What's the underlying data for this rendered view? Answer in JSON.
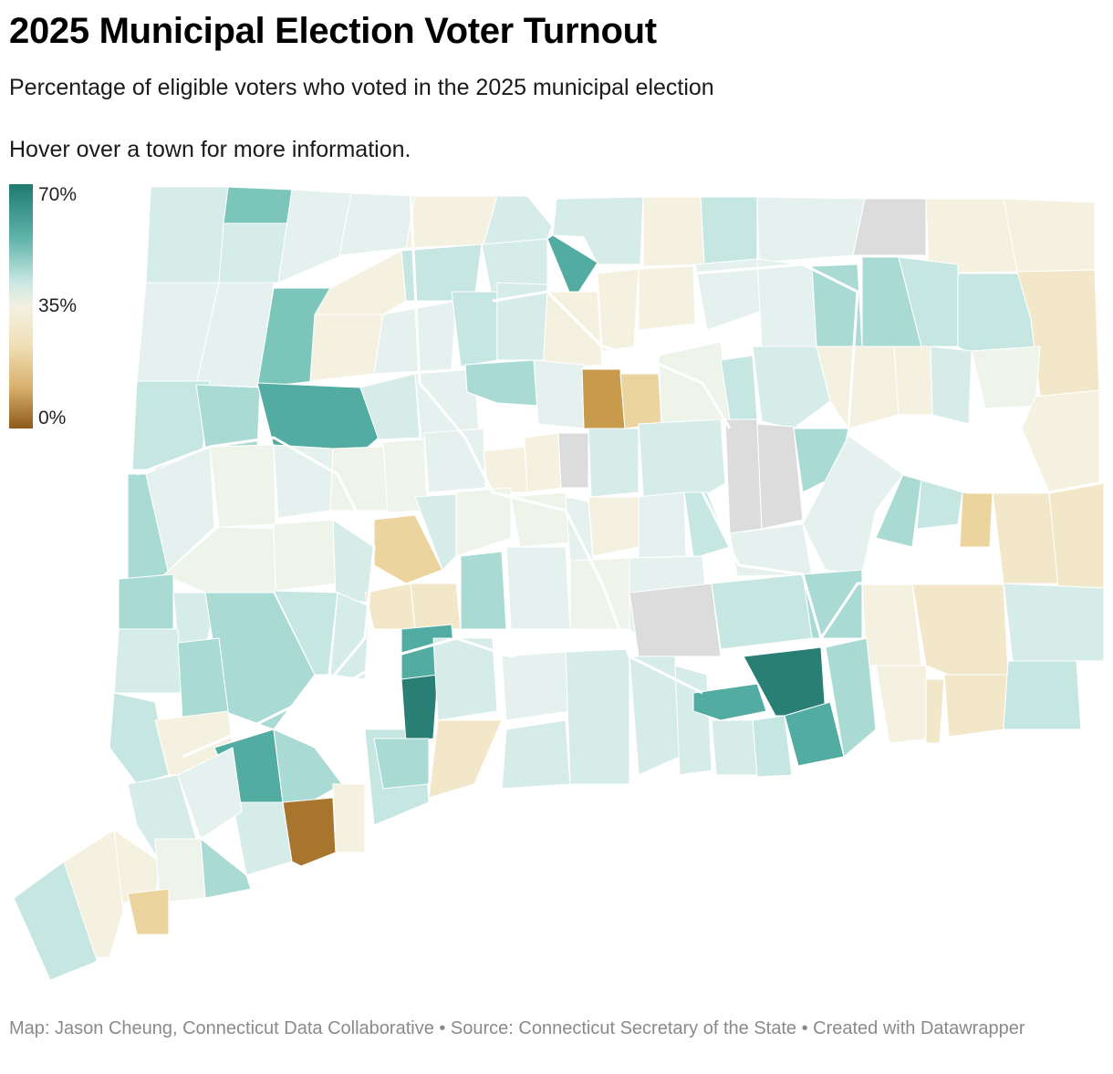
{
  "header": {
    "title": "2025 Municipal Election Voter Turnout",
    "subtitle": "Percentage of eligible voters who voted in the 2025 municipal election",
    "hint": "Hover over a town for more information."
  },
  "legend": {
    "max_label": "70%",
    "mid_label": "35%",
    "min_label": "0%",
    "max_value": 70,
    "mid_value": 35,
    "min_value": 0
  },
  "colors": {
    "high": "#1f7a70",
    "mid": "#f4f1e2",
    "low": "#8c5a1a",
    "no_data": "#dcdcdc"
  },
  "footer": {
    "credit": "Map: Jason Cheung, Connecticut Data Collaborative • Source: Connecticut Secretary of the State • Created with Datawrapper"
  }
}
